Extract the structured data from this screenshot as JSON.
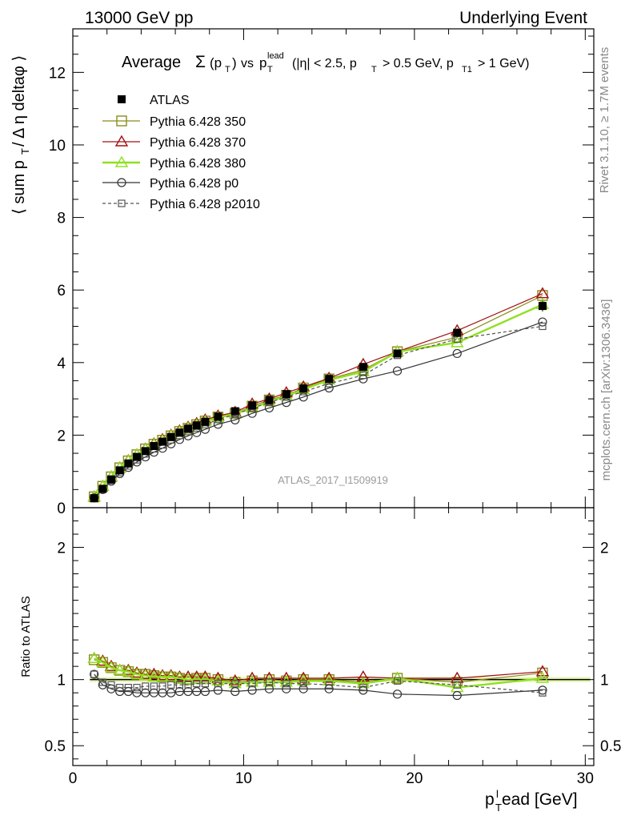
{
  "header": {
    "energy_label": "13000 GeV pp",
    "process_label": "Underlying Event",
    "title_main": "Average",
    "title_sigma": "Σ",
    "title_pt_open": "(p",
    "title_pt_sub": "T",
    "title_pt_close": ")",
    "title_vs": "vs",
    "title_p": "p",
    "title_lead_sup": "lead",
    "title_T_sub": "T",
    "title_cut1": "(|η| < 2.5, p",
    "title_cut1_sub": "T",
    "title_cut2": "> 0.5 GeV, p",
    "title_cut2_sub": "T1",
    "title_cut3": "> 1 GeV)"
  },
  "side_labels": {
    "rivet": "Rivet 3.1.10, ≥ 1.7M events",
    "mcplots": "mcplots.cern.ch [arXiv:1306.3436]"
  },
  "analysis_id": "ATLAS_2017_I1509919",
  "axes": {
    "ylabel_main_prefix": "⟨ sum p",
    "ylabel_main_sub": "T",
    "ylabel_main_suffix": " / Δ η deltaφ ⟩",
    "ylabel_ratio": "Ratio to ATLAS",
    "xlabel_p": "p",
    "xlabel_sub": "T",
    "xlabel_sup": "l",
    "xlabel_rest": "ead [GeV]"
  },
  "chart_data": {
    "type": "line",
    "x": [
      1.25,
      1.75,
      2.25,
      2.75,
      3.25,
      3.75,
      4.25,
      4.75,
      5.25,
      5.75,
      6.25,
      6.75,
      7.25,
      7.75,
      8.5,
      9.5,
      10.5,
      11.5,
      12.5,
      13.5,
      15.0,
      17.0,
      19.0,
      22.5,
      27.5
    ],
    "xlim": [
      0,
      30.5
    ],
    "xticks": [
      0,
      10,
      20,
      30
    ],
    "main": {
      "ylim": [
        0,
        13.2
      ],
      "yticks": [
        0,
        2,
        4,
        6,
        8,
        10,
        12
      ]
    },
    "ratio": {
      "ylim": [
        0.35,
        2.3
      ],
      "yticks": [
        0.5,
        1,
        2
      ],
      "yticks_right": [
        0.5,
        1,
        2
      ]
    },
    "series": [
      {
        "name": "ATLAS",
        "color": "#000000",
        "marker": "filled-square",
        "line": "none",
        "values": [
          0.26,
          0.52,
          0.78,
          1.03,
          1.22,
          1.4,
          1.56,
          1.7,
          1.82,
          1.95,
          2.07,
          2.18,
          2.27,
          2.37,
          2.51,
          2.66,
          2.82,
          2.97,
          3.13,
          3.29,
          3.55,
          3.88,
          4.25,
          4.82,
          5.56
        ],
        "err": [
          0.01,
          0.02,
          0.02,
          0.03,
          0.03,
          0.03,
          0.04,
          0.04,
          0.04,
          0.04,
          0.05,
          0.05,
          0.05,
          0.05,
          0.05,
          0.06,
          0.06,
          0.07,
          0.07,
          0.07,
          0.08,
          0.09,
          0.1,
          0.12,
          0.15
        ]
      },
      {
        "name": "Pythia 6.428 350",
        "color": "#8b8b1a",
        "marker": "open-square",
        "line": "solid",
        "values": [
          0.3,
          0.59,
          0.85,
          1.1,
          1.29,
          1.46,
          1.62,
          1.75,
          1.86,
          1.98,
          2.1,
          2.19,
          2.29,
          2.39,
          2.5,
          2.6,
          2.8,
          2.97,
          3.1,
          3.3,
          3.55,
          3.8,
          4.3,
          4.7,
          5.85
        ]
      },
      {
        "name": "Pythia 6.428 370",
        "color": "#a01010",
        "marker": "open-triangle",
        "line": "solid",
        "values": [
          0.3,
          0.59,
          0.85,
          1.1,
          1.3,
          1.46,
          1.62,
          1.76,
          1.88,
          2.0,
          2.12,
          2.22,
          2.32,
          2.42,
          2.53,
          2.63,
          2.86,
          3.0,
          3.17,
          3.33,
          3.57,
          3.95,
          4.3,
          4.88,
          5.9
        ]
      },
      {
        "name": "Pythia 6.428 380",
        "color": "#8fe020",
        "marker": "open-triangle",
        "line": "solid-thick",
        "values": [
          0.3,
          0.59,
          0.85,
          1.1,
          1.29,
          1.46,
          1.61,
          1.74,
          1.85,
          1.98,
          2.09,
          2.19,
          2.28,
          2.38,
          2.48,
          2.59,
          2.75,
          2.92,
          3.08,
          3.26,
          3.52,
          3.75,
          4.3,
          4.55,
          5.6
        ]
      },
      {
        "name": "Pythia 6.428 p0",
        "color": "#333333",
        "marker": "open-circle",
        "line": "solid",
        "values": [
          0.27,
          0.5,
          0.73,
          0.94,
          1.11,
          1.26,
          1.4,
          1.53,
          1.64,
          1.76,
          1.88,
          1.98,
          2.07,
          2.16,
          2.3,
          2.42,
          2.6,
          2.75,
          2.9,
          3.05,
          3.3,
          3.55,
          3.77,
          4.25,
          5.12
        ]
      },
      {
        "name": "Pythia 6.428 p2010",
        "color": "#555555",
        "marker": "open-square-small",
        "line": "dashed",
        "values": [
          0.27,
          0.51,
          0.75,
          0.97,
          1.15,
          1.32,
          1.48,
          1.62,
          1.73,
          1.87,
          1.99,
          2.1,
          2.2,
          2.29,
          2.43,
          2.57,
          2.74,
          2.9,
          3.05,
          3.2,
          3.42,
          3.65,
          4.2,
          4.65,
          5.0
        ]
      }
    ],
    "ratio_series": [
      {
        "name": "Pythia 6.428 350",
        "values": [
          1.15,
          1.13,
          1.09,
          1.07,
          1.06,
          1.04,
          1.04,
          1.03,
          1.02,
          1.02,
          1.01,
          1.0,
          1.01,
          1.01,
          1.0,
          0.98,
          0.99,
          1.0,
          0.99,
          1.0,
          1.0,
          0.98,
          1.01,
          0.98,
          1.05
        ]
      },
      {
        "name": "Pythia 6.428 370",
        "values": [
          1.16,
          1.14,
          1.1,
          1.07,
          1.07,
          1.05,
          1.04,
          1.04,
          1.03,
          1.03,
          1.02,
          1.02,
          1.02,
          1.02,
          1.01,
          0.99,
          1.01,
          1.01,
          1.01,
          1.01,
          1.01,
          1.02,
          1.01,
          1.01,
          1.06
        ]
      },
      {
        "name": "Pythia 6.428 380",
        "values": [
          1.16,
          1.13,
          1.09,
          1.07,
          1.06,
          1.04,
          1.03,
          1.02,
          1.02,
          1.02,
          1.01,
          1.0,
          1.0,
          1.0,
          0.99,
          0.97,
          0.98,
          0.98,
          0.98,
          0.99,
          0.99,
          0.97,
          1.01,
          0.94,
          1.01
        ]
      },
      {
        "name": "Pythia 6.428 p0",
        "values": [
          1.04,
          0.96,
          0.93,
          0.91,
          0.91,
          0.9,
          0.9,
          0.9,
          0.9,
          0.9,
          0.91,
          0.91,
          0.91,
          0.91,
          0.92,
          0.91,
          0.92,
          0.93,
          0.93,
          0.93,
          0.93,
          0.92,
          0.89,
          0.88,
          0.92
        ]
      },
      {
        "name": "Pythia 6.428 p2010",
        "values": [
          1.04,
          0.98,
          0.96,
          0.94,
          0.94,
          0.94,
          0.95,
          0.95,
          0.95,
          0.96,
          0.96,
          0.96,
          0.97,
          0.97,
          0.97,
          0.97,
          0.97,
          0.98,
          0.97,
          0.97,
          0.96,
          0.94,
          0.99,
          0.96,
          0.9
        ]
      }
    ],
    "legend_position": "top-left",
    "grid": false
  }
}
